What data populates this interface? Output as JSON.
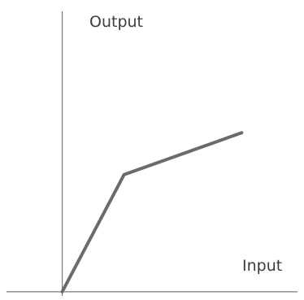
{
  "chart_data": {
    "type": "line",
    "title": "",
    "xlabel": "Input",
    "ylabel": "Output",
    "grid": false,
    "series": [
      {
        "x": [
          0,
          1,
          2.9
        ],
        "y": [
          0,
          1.4,
          1.9
        ]
      }
    ],
    "xlim": [
      -0.9,
      3.8
    ],
    "ylim": [
      -0.05,
      3.35
    ],
    "colors": {
      "axis": "#7a7a7a",
      "line": "#6b6b6b",
      "text": "#3c3c3c"
    }
  }
}
